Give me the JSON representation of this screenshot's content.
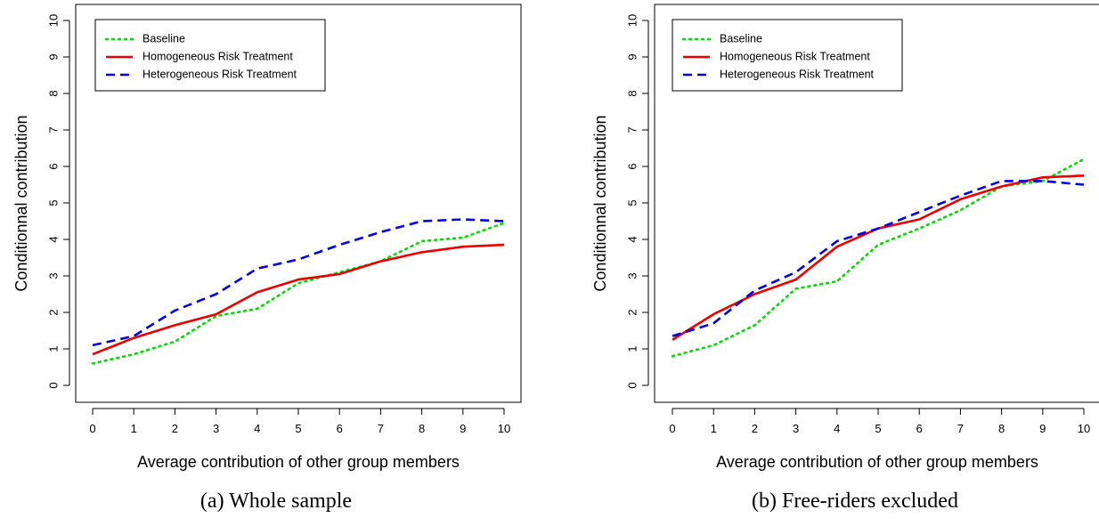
{
  "chart_data": [
    {
      "type": "line",
      "caption": "(a) Whole sample",
      "xlabel": "Average contribution of other group members",
      "ylabel": "Conditionnal contribution",
      "xlim": [
        0,
        10
      ],
      "ylim": [
        0,
        10
      ],
      "x_ticks": [
        "0",
        "1",
        "2",
        "3",
        "4",
        "5",
        "6",
        "7",
        "8",
        "9",
        "10"
      ],
      "y_ticks": [
        "0",
        "1",
        "2",
        "3",
        "4",
        "5",
        "6",
        "7",
        "8",
        "9",
        "10"
      ],
      "legend_position": "top-left",
      "grid": false,
      "x": [
        0,
        1,
        2,
        3,
        4,
        5,
        6,
        7,
        8,
        9,
        10
      ],
      "series": [
        {
          "name": "Baseline",
          "color": "#00dd00",
          "style": "dotted",
          "values": [
            0.6,
            0.85,
            1.2,
            1.9,
            2.1,
            2.8,
            3.1,
            3.4,
            3.95,
            4.05,
            4.45
          ]
        },
        {
          "name": "Homogeneous Risk Treatment",
          "color": "#ee0000",
          "style": "solid",
          "values": [
            0.85,
            1.3,
            1.65,
            1.95,
            2.55,
            2.9,
            3.05,
            3.4,
            3.65,
            3.8,
            3.85
          ]
        },
        {
          "name": "Heterogeneous Risk Treatment",
          "color": "#0000ee",
          "style": "dashed",
          "values": [
            1.1,
            1.35,
            2.05,
            2.5,
            3.2,
            3.45,
            3.85,
            4.2,
            4.5,
            4.55,
            4.5
          ]
        }
      ]
    },
    {
      "type": "line",
      "caption": "(b) Free-riders excluded",
      "xlabel": "Average contribution of other group members",
      "ylabel": "Conditionnal contribution",
      "xlim": [
        0,
        10
      ],
      "ylim": [
        0,
        10
      ],
      "x_ticks": [
        "0",
        "1",
        "2",
        "3",
        "4",
        "5",
        "6",
        "7",
        "8",
        "9",
        "10"
      ],
      "y_ticks": [
        "0",
        "1",
        "2",
        "3",
        "4",
        "5",
        "6",
        "7",
        "8",
        "9",
        "10"
      ],
      "legend_position": "top-left",
      "grid": false,
      "x": [
        0,
        1,
        2,
        3,
        4,
        5,
        6,
        7,
        8,
        9,
        10
      ],
      "series": [
        {
          "name": "Baseline",
          "color": "#00dd00",
          "style": "dotted",
          "values": [
            0.8,
            1.1,
            1.65,
            2.65,
            2.85,
            3.85,
            4.3,
            4.8,
            5.45,
            5.6,
            6.2
          ]
        },
        {
          "name": "Homogeneous Risk Treatment",
          "color": "#ee0000",
          "style": "solid",
          "values": [
            1.25,
            1.95,
            2.5,
            2.9,
            3.8,
            4.3,
            4.55,
            5.1,
            5.45,
            5.7,
            5.75
          ]
        },
        {
          "name": "Heterogeneous Risk Treatment",
          "color": "#0000ee",
          "style": "dashed",
          "values": [
            1.35,
            1.7,
            2.6,
            3.1,
            3.95,
            4.3,
            4.75,
            5.2,
            5.6,
            5.6,
            5.5
          ]
        }
      ]
    }
  ]
}
